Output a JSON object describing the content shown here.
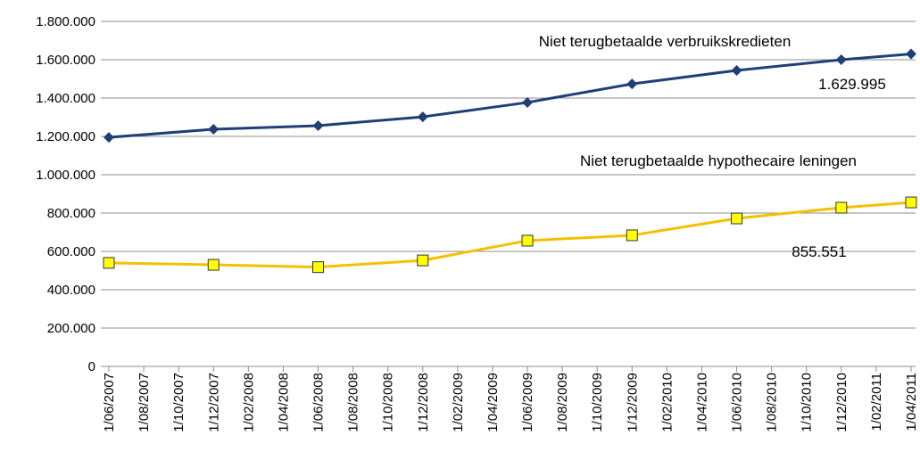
{
  "chart_data": {
    "type": "line",
    "categories": [
      "1/06/2007",
      "1/08/2007",
      "1/10/2007",
      "1/12/2007",
      "1/02/2008",
      "1/04/2008",
      "1/06/2008",
      "1/08/2008",
      "1/10/2008",
      "1/12/2008",
      "1/02/2009",
      "1/04/2009",
      "1/06/2009",
      "1/08/2009",
      "1/10/2009",
      "1/12/2009",
      "1/02/2010",
      "1/04/2010",
      "1/06/2010",
      "1/08/2010",
      "1/10/2010",
      "1/12/2010",
      "1/02/2011",
      "1/04/2011"
    ],
    "series": [
      {
        "name": "Niet terugbetaalde verbruikskredieten",
        "color": "#1f3f76",
        "marker": "diamond",
        "values": [
          1195000,
          null,
          null,
          1237000,
          null,
          null,
          1256000,
          null,
          null,
          1302000,
          null,
          null,
          1377000,
          null,
          null,
          1474000,
          null,
          null,
          1544000,
          null,
          null,
          1600000,
          null,
          1629995
        ],
        "value_labels": [
          null,
          null,
          null,
          null,
          null,
          null,
          null,
          null,
          null,
          null,
          null,
          null,
          null,
          null,
          null,
          null,
          null,
          null,
          null,
          null,
          null,
          null,
          null,
          "1.629.995"
        ]
      },
      {
        "name": "Niet terugbetaalde hypothecaire leningen",
        "color": "#f5c000",
        "marker": "square",
        "marker_color": "#ffff00",
        "values": [
          540000,
          null,
          null,
          530000,
          null,
          null,
          518000,
          null,
          null,
          553000,
          null,
          null,
          656000,
          null,
          null,
          684000,
          null,
          null,
          772000,
          null,
          null,
          828000,
          null,
          855551
        ],
        "value_labels": [
          null,
          null,
          null,
          null,
          null,
          null,
          null,
          null,
          null,
          null,
          null,
          null,
          null,
          null,
          null,
          null,
          null,
          null,
          null,
          null,
          null,
          null,
          null,
          "855.551"
        ]
      }
    ],
    "ylim": [
      0,
      1800000
    ],
    "yticks": [
      0,
      {
        "value": 200000,
        "label": "200.000"
      },
      {
        "value": 400000,
        "label": "400.000"
      },
      {
        "value": 600000,
        "label": "600.000"
      },
      {
        "value": 800000,
        "label": "800.000"
      },
      {
        "value": 1000000,
        "label": "1.000.000"
      },
      {
        "value": 1200000,
        "label": "1.200.000"
      },
      {
        "value": 1400000,
        "label": "1.400.000"
      },
      {
        "value": 1600000,
        "label": "1.600.000"
      },
      {
        "value": 1800000,
        "label": "1.800.000"
      }
    ],
    "grid": true
  }
}
